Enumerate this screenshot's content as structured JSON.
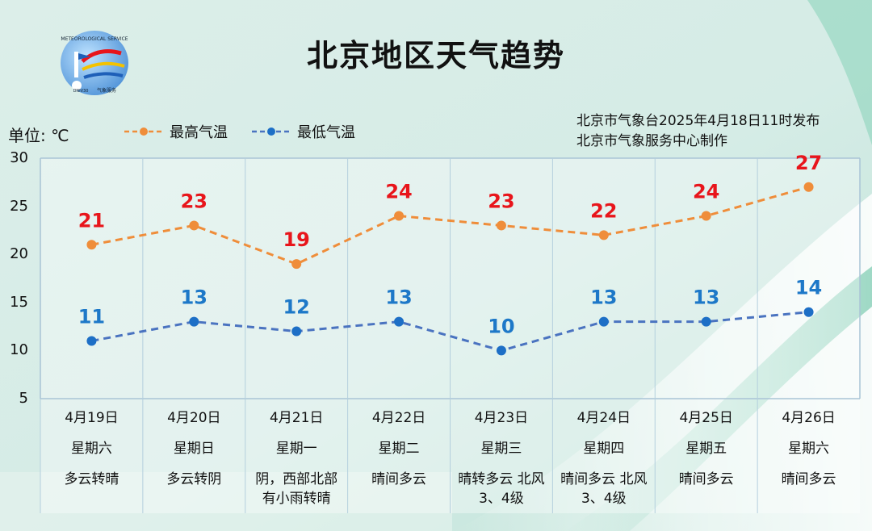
{
  "title": "北京地区天气趋势",
  "logo": {
    "text": "METEOROLOGICAL SERVICE",
    "sub": "气象服务",
    "code": "DNIV30"
  },
  "unit_label": "单位: ℃",
  "legend": {
    "high": "最高气温",
    "low": "最低气温"
  },
  "publisher": {
    "line1": "北京市气象台2025年4月18日11时发布",
    "line2": "北京市气象服务中心制作"
  },
  "colors": {
    "high_line": "#ef8d3a",
    "low_line": "#4a73c0",
    "high_label": "#e8151b",
    "low_label": "#1d78c8"
  },
  "chart_data": {
    "type": "line",
    "title": "北京地区天气趋势",
    "ylabel": "单位: ℃",
    "ylim": [
      5,
      30
    ],
    "yticks": [
      30,
      25,
      20,
      15,
      10,
      5
    ],
    "categories": [
      "4月19日",
      "4月20日",
      "4月21日",
      "4月22日",
      "4月23日",
      "4月24日",
      "4月25日",
      "4月26日"
    ],
    "series": [
      {
        "name": "最高气温",
        "values": [
          21,
          23,
          19,
          24,
          23,
          22,
          24,
          27
        ]
      },
      {
        "name": "最低气温",
        "values": [
          11,
          13,
          12,
          13,
          10,
          13,
          13,
          14
        ]
      }
    ]
  },
  "days": [
    {
      "date": "4月19日",
      "weekday": "星期六",
      "weather": [
        "多云转晴"
      ]
    },
    {
      "date": "4月20日",
      "weekday": "星期日",
      "weather": [
        "多云转阴"
      ]
    },
    {
      "date": "4月21日",
      "weekday": "星期一",
      "weather": [
        "阴，西部北部",
        "有小雨转晴"
      ]
    },
    {
      "date": "4月22日",
      "weekday": "星期二",
      "weather": [
        "晴间多云"
      ]
    },
    {
      "date": "4月23日",
      "weekday": "星期三",
      "weather": [
        "晴转多云 北风",
        "3、4级"
      ]
    },
    {
      "date": "4月24日",
      "weekday": "星期四",
      "weather": [
        "晴间多云 北风",
        "3、4级"
      ]
    },
    {
      "date": "4月25日",
      "weekday": "星期五",
      "weather": [
        "晴间多云"
      ]
    },
    {
      "date": "4月26日",
      "weekday": "星期六",
      "weather": [
        "晴间多云"
      ]
    }
  ]
}
